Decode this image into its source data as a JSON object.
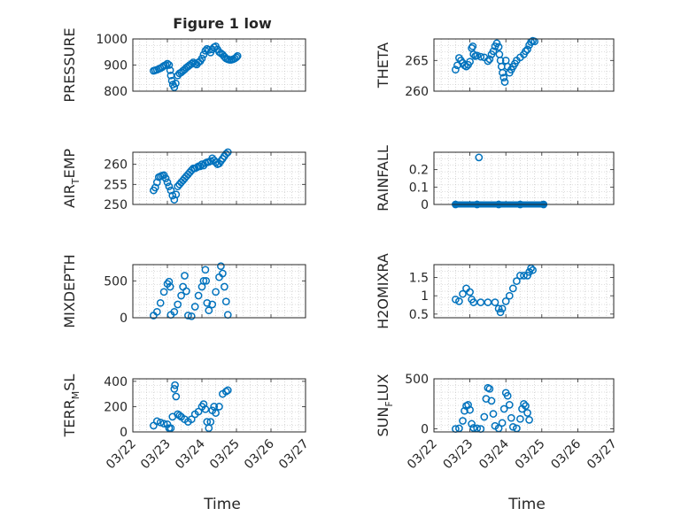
{
  "figure": {
    "title": "Figure 1 low",
    "xlabel": "Time"
  },
  "colors": {
    "marker": "#0072BD",
    "axes": "#262626",
    "grid": "#bdbdbd",
    "background": "#ffffff"
  },
  "chart_data": [
    {
      "id": "pressure",
      "type": "scatter",
      "ylabel": "PRESSURE",
      "ylim": [
        800,
        1000
      ],
      "yticks": [
        "800",
        "900",
        "1000"
      ],
      "grid": true,
      "x_range": [
        "03/22",
        "03/27"
      ],
      "points": [
        [
          0.6,
          878
        ],
        [
          0.65,
          880
        ],
        [
          0.7,
          882
        ],
        [
          0.75,
          885
        ],
        [
          0.8,
          888
        ],
        [
          0.85,
          892
        ],
        [
          0.9,
          897
        ],
        [
          0.95,
          900
        ],
        [
          1.0,
          905
        ],
        [
          1.05,
          900
        ],
        [
          1.08,
          880
        ],
        [
          1.1,
          860
        ],
        [
          1.13,
          840
        ],
        [
          1.16,
          825
        ],
        [
          1.2,
          815
        ],
        [
          1.24,
          830
        ],
        [
          1.3,
          860
        ],
        [
          1.35,
          868
        ],
        [
          1.4,
          872
        ],
        [
          1.45,
          878
        ],
        [
          1.5,
          883
        ],
        [
          1.55,
          890
        ],
        [
          1.6,
          895
        ],
        [
          1.65,
          900
        ],
        [
          1.7,
          905
        ],
        [
          1.75,
          910
        ],
        [
          1.8,
          905
        ],
        [
          1.85,
          902
        ],
        [
          1.9,
          910
        ],
        [
          1.95,
          915
        ],
        [
          2.0,
          925
        ],
        [
          2.05,
          940
        ],
        [
          2.1,
          955
        ],
        [
          2.15,
          962
        ],
        [
          2.2,
          958
        ],
        [
          2.25,
          948
        ],
        [
          2.3,
          960
        ],
        [
          2.35,
          968
        ],
        [
          2.4,
          972
        ],
        [
          2.45,
          960
        ],
        [
          2.5,
          950
        ],
        [
          2.55,
          945
        ],
        [
          2.6,
          940
        ],
        [
          2.65,
          932
        ],
        [
          2.7,
          925
        ],
        [
          2.75,
          922
        ],
        [
          2.8,
          920
        ],
        [
          2.85,
          920
        ],
        [
          2.9,
          922
        ],
        [
          2.95,
          925
        ],
        [
          3.0,
          930
        ],
        [
          3.03,
          935
        ]
      ]
    },
    {
      "id": "theta",
      "type": "scatter",
      "ylabel": "THETA",
      "ylim": [
        260,
        268.5
      ],
      "yticks": [
        "260",
        "265"
      ],
      "grid": true,
      "x_range": [
        "03/22",
        "03/27"
      ],
      "points": [
        [
          0.6,
          263.5
        ],
        [
          0.65,
          264.2
        ],
        [
          0.7,
          265.4
        ],
        [
          0.75,
          265
        ],
        [
          0.8,
          264.6
        ],
        [
          0.85,
          264.2
        ],
        [
          0.9,
          264
        ],
        [
          0.95,
          264.3
        ],
        [
          1.0,
          264.8
        ],
        [
          1.05,
          267
        ],
        [
          1.08,
          267.3
        ],
        [
          1.1,
          266
        ],
        [
          1.15,
          265.7
        ],
        [
          1.2,
          265.8
        ],
        [
          1.3,
          265.6
        ],
        [
          1.4,
          265.5
        ],
        [
          1.5,
          264.9
        ],
        [
          1.55,
          265.2
        ],
        [
          1.6,
          266
        ],
        [
          1.65,
          266.5
        ],
        [
          1.7,
          267.3
        ],
        [
          1.75,
          267.8
        ],
        [
          1.8,
          267.2
        ],
        [
          1.82,
          266
        ],
        [
          1.85,
          265
        ],
        [
          1.88,
          264
        ],
        [
          1.91,
          263
        ],
        [
          1.94,
          262.2
        ],
        [
          1.97,
          261.5
        ],
        [
          2.0,
          265
        ],
        [
          2.05,
          264
        ],
        [
          2.1,
          263
        ],
        [
          2.15,
          263.5
        ],
        [
          2.2,
          264
        ],
        [
          2.25,
          264.5
        ],
        [
          2.3,
          265
        ],
        [
          2.4,
          265.5
        ],
        [
          2.5,
          266
        ],
        [
          2.55,
          266.5
        ],
        [
          2.6,
          266.8
        ],
        [
          2.65,
          267.5
        ],
        [
          2.7,
          268
        ],
        [
          2.75,
          268.2
        ],
        [
          2.8,
          268.1
        ]
      ]
    },
    {
      "id": "air_temp",
      "type": "scatter",
      "ylabel": "AIR_TEMP",
      "ylim": [
        250,
        263
      ],
      "yticks": [
        "250",
        "255",
        "260"
      ],
      "grid": true,
      "x_range": [
        "03/22",
        "03/27"
      ],
      "points": [
        [
          0.6,
          253.5
        ],
        [
          0.65,
          254.2
        ],
        [
          0.7,
          255.5
        ],
        [
          0.75,
          256.8
        ],
        [
          0.8,
          257
        ],
        [
          0.85,
          257.2
        ],
        [
          0.9,
          257.3
        ],
        [
          0.95,
          256.5
        ],
        [
          1.0,
          255.5
        ],
        [
          1.05,
          254.5
        ],
        [
          1.1,
          253.5
        ],
        [
          1.15,
          252.2
        ],
        [
          1.2,
          251.2
        ],
        [
          1.25,
          252.5
        ],
        [
          1.3,
          254.5
        ],
        [
          1.35,
          255
        ],
        [
          1.4,
          255.5
        ],
        [
          1.45,
          256
        ],
        [
          1.5,
          256.5
        ],
        [
          1.55,
          257
        ],
        [
          1.6,
          257.5
        ],
        [
          1.65,
          258
        ],
        [
          1.7,
          258.5
        ],
        [
          1.75,
          259
        ],
        [
          1.8,
          259
        ],
        [
          1.85,
          259.2
        ],
        [
          1.9,
          259.5
        ],
        [
          1.95,
          259.5
        ],
        [
          2.0,
          260
        ],
        [
          2.05,
          259.7
        ],
        [
          2.1,
          260.3
        ],
        [
          2.15,
          260.5
        ],
        [
          2.2,
          260.6
        ],
        [
          2.25,
          260.8
        ],
        [
          2.3,
          261.5
        ],
        [
          2.35,
          261
        ],
        [
          2.4,
          260.5
        ],
        [
          2.45,
          260
        ],
        [
          2.5,
          260.2
        ],
        [
          2.55,
          260.8
        ],
        [
          2.6,
          261.4
        ],
        [
          2.65,
          262
        ],
        [
          2.7,
          262.6
        ],
        [
          2.75,
          263
        ]
      ]
    },
    {
      "id": "rainfall",
      "type": "scatter",
      "ylabel": "RAINFALL",
      "ylim": [
        0,
        0.3
      ],
      "yticks": [
        "0",
        "0.1",
        "0.2"
      ],
      "grid": true,
      "x_range": [
        "03/22",
        "03/27"
      ],
      "points": [
        [
          0.6,
          0
        ],
        [
          1.2,
          0
        ],
        [
          1.25,
          0.27
        ],
        [
          1.8,
          0
        ],
        [
          2.4,
          0
        ],
        [
          3.05,
          0
        ]
      ]
    },
    {
      "id": "mixdepth",
      "type": "scatter",
      "ylabel": "MIXDEPTH",
      "ylim": [
        0,
        720
      ],
      "yticks": [
        "0",
        "500"
      ],
      "grid": true,
      "x_range": [
        "03/22",
        "03/27"
      ],
      "points": [
        [
          0.6,
          30
        ],
        [
          0.7,
          80
        ],
        [
          0.8,
          200
        ],
        [
          0.9,
          350
        ],
        [
          1.0,
          460
        ],
        [
          1.05,
          490
        ],
        [
          1.08,
          420
        ],
        [
          1.1,
          40
        ],
        [
          1.2,
          80
        ],
        [
          1.3,
          180
        ],
        [
          1.4,
          300
        ],
        [
          1.45,
          420
        ],
        [
          1.5,
          570
        ],
        [
          1.55,
          360
        ],
        [
          1.6,
          30
        ],
        [
          1.7,
          20
        ],
        [
          1.8,
          150
        ],
        [
          1.9,
          300
        ],
        [
          2.0,
          420
        ],
        [
          2.05,
          500
        ],
        [
          2.1,
          650
        ],
        [
          2.12,
          500
        ],
        [
          2.15,
          200
        ],
        [
          2.2,
          100
        ],
        [
          2.3,
          180
        ],
        [
          2.4,
          350
        ],
        [
          2.5,
          550
        ],
        [
          2.55,
          700
        ],
        [
          2.6,
          600
        ],
        [
          2.65,
          420
        ],
        [
          2.7,
          220
        ],
        [
          2.75,
          40
        ]
      ]
    },
    {
      "id": "h2omixra",
      "type": "scatter",
      "ylabel": "H2OMIXRA",
      "ylim": [
        0.4,
        1.85
      ],
      "yticks": [
        "0.5",
        "1",
        "1.5"
      ],
      "grid": true,
      "x_range": [
        "03/22",
        "03/27"
      ],
      "points": [
        [
          0.6,
          0.9
        ],
        [
          0.7,
          0.85
        ],
        [
          0.8,
          1.05
        ],
        [
          0.9,
          1.2
        ],
        [
          1.0,
          1.1
        ],
        [
          1.05,
          0.9
        ],
        [
          1.1,
          0.82
        ],
        [
          1.3,
          0.82
        ],
        [
          1.5,
          0.82
        ],
        [
          1.7,
          0.82
        ],
        [
          1.8,
          0.65
        ],
        [
          1.85,
          0.55
        ],
        [
          1.9,
          0.65
        ],
        [
          2.0,
          0.85
        ],
        [
          2.1,
          1.0
        ],
        [
          2.2,
          1.2
        ],
        [
          2.3,
          1.4
        ],
        [
          2.4,
          1.55
        ],
        [
          2.5,
          1.55
        ],
        [
          2.6,
          1.55
        ],
        [
          2.65,
          1.65
        ],
        [
          2.7,
          1.75
        ],
        [
          2.75,
          1.7
        ]
      ]
    },
    {
      "id": "terr_msl",
      "type": "scatter",
      "ylabel": "TERR_MSL",
      "ylim": [
        0,
        420
      ],
      "yticks": [
        "0",
        "200",
        "400"
      ],
      "grid": true,
      "x_range": [
        "03/22",
        "03/27"
      ],
      "points": [
        [
          0.6,
          50
        ],
        [
          0.7,
          85
        ],
        [
          0.8,
          75
        ],
        [
          0.9,
          65
        ],
        [
          1.0,
          60
        ],
        [
          1.05,
          30
        ],
        [
          1.1,
          30
        ],
        [
          1.15,
          120
        ],
        [
          1.2,
          340
        ],
        [
          1.22,
          370
        ],
        [
          1.25,
          280
        ],
        [
          1.3,
          140
        ],
        [
          1.35,
          130
        ],
        [
          1.4,
          120
        ],
        [
          1.5,
          100
        ],
        [
          1.6,
          80
        ],
        [
          1.7,
          100
        ],
        [
          1.8,
          140
        ],
        [
          1.9,
          160
        ],
        [
          2.0,
          200
        ],
        [
          2.05,
          220
        ],
        [
          2.1,
          180
        ],
        [
          2.15,
          80
        ],
        [
          2.2,
          30
        ],
        [
          2.25,
          80
        ],
        [
          2.3,
          170
        ],
        [
          2.35,
          200
        ],
        [
          2.4,
          150
        ],
        [
          2.5,
          200
        ],
        [
          2.6,
          300
        ],
        [
          2.7,
          320
        ],
        [
          2.75,
          330
        ]
      ]
    },
    {
      "id": "sun_flux",
      "type": "scatter",
      "ylabel": "SUN_FLUX",
      "ylim": [
        -30,
        500
      ],
      "yticks": [
        "0",
        "500"
      ],
      "grid": true,
      "x_range": [
        "03/22",
        "03/27"
      ],
      "points": [
        [
          0.6,
          0
        ],
        [
          0.7,
          5
        ],
        [
          0.8,
          80
        ],
        [
          0.85,
          180
        ],
        [
          0.9,
          230
        ],
        [
          0.95,
          240
        ],
        [
          1.0,
          190
        ],
        [
          1.05,
          50
        ],
        [
          1.1,
          10
        ],
        [
          1.2,
          5
        ],
        [
          1.3,
          0
        ],
        [
          1.4,
          120
        ],
        [
          1.45,
          300
        ],
        [
          1.5,
          410
        ],
        [
          1.55,
          400
        ],
        [
          1.6,
          280
        ],
        [
          1.65,
          150
        ],
        [
          1.7,
          30
        ],
        [
          1.8,
          5
        ],
        [
          1.9,
          60
        ],
        [
          1.95,
          200
        ],
        [
          2.0,
          360
        ],
        [
          2.05,
          330
        ],
        [
          2.1,
          240
        ],
        [
          2.15,
          110
        ],
        [
          2.2,
          20
        ],
        [
          2.3,
          5
        ],
        [
          2.4,
          100
        ],
        [
          2.45,
          200
        ],
        [
          2.5,
          250
        ],
        [
          2.55,
          230
        ],
        [
          2.6,
          160
        ],
        [
          2.65,
          90
        ]
      ]
    }
  ]
}
